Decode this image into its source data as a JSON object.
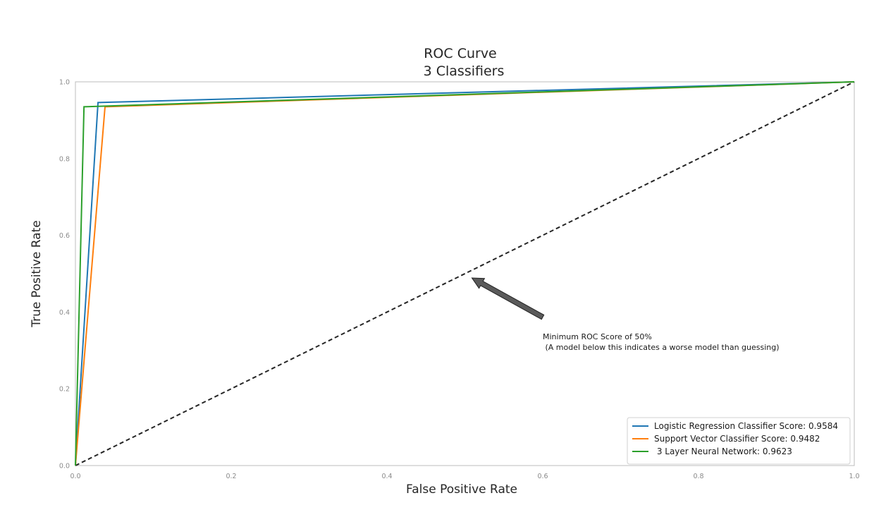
{
  "chart_data": {
    "type": "line",
    "title": "ROC Curve\n 3 Classifiers",
    "title_lines": [
      "ROC Curve",
      "3 Classifiers"
    ],
    "xlabel": "False Positive Rate",
    "ylabel": "True Positive Rate",
    "xlim": [
      0.0,
      1.0
    ],
    "ylim": [
      0.0,
      1.0
    ],
    "xticks": [
      0.0,
      0.2,
      0.4,
      0.6,
      0.8,
      1.0
    ],
    "yticks": [
      0.0,
      0.2,
      0.4,
      0.6,
      0.8,
      1.0
    ],
    "xtick_labels": [
      "0.0",
      "0.2",
      "0.4",
      "0.6",
      "0.8",
      "1.0"
    ],
    "ytick_labels": [
      "0.0",
      "0.2",
      "0.4",
      "0.6",
      "0.8",
      "1.0"
    ],
    "grid": false,
    "legend_position": "lower-right",
    "series": [
      {
        "name": "Logistic Regression Classifier Score: 0.9584",
        "color": "#1f77b4",
        "x": [
          0.0,
          0.029,
          1.0
        ],
        "y": [
          0.0,
          0.946,
          1.0
        ]
      },
      {
        "name": "Support Vector Classifier Score: 0.9482",
        "color": "#ff7f0e",
        "x": [
          0.0,
          0.038,
          1.0
        ],
        "y": [
          0.0,
          0.935,
          1.0
        ]
      },
      {
        "name": " 3 Layer Neural Network: 0.9623",
        "color": "#2ca02c",
        "x": [
          0.0,
          0.011,
          1.0
        ],
        "y": [
          0.0,
          0.935,
          1.0
        ]
      }
    ],
    "reference_line": {
      "x": [
        0.0,
        1.0
      ],
      "y": [
        0.0,
        1.0
      ],
      "color": "#262626",
      "style": "dashed"
    },
    "annotation": {
      "text_lines": [
        "Minimum ROC Score of 50%",
        " (A model below this indicates a worse model than guessing)"
      ],
      "xy": [
        0.5,
        0.5
      ],
      "xytext": [
        0.6,
        0.35
      ],
      "arrow_color": "#5a5a5a"
    }
  }
}
